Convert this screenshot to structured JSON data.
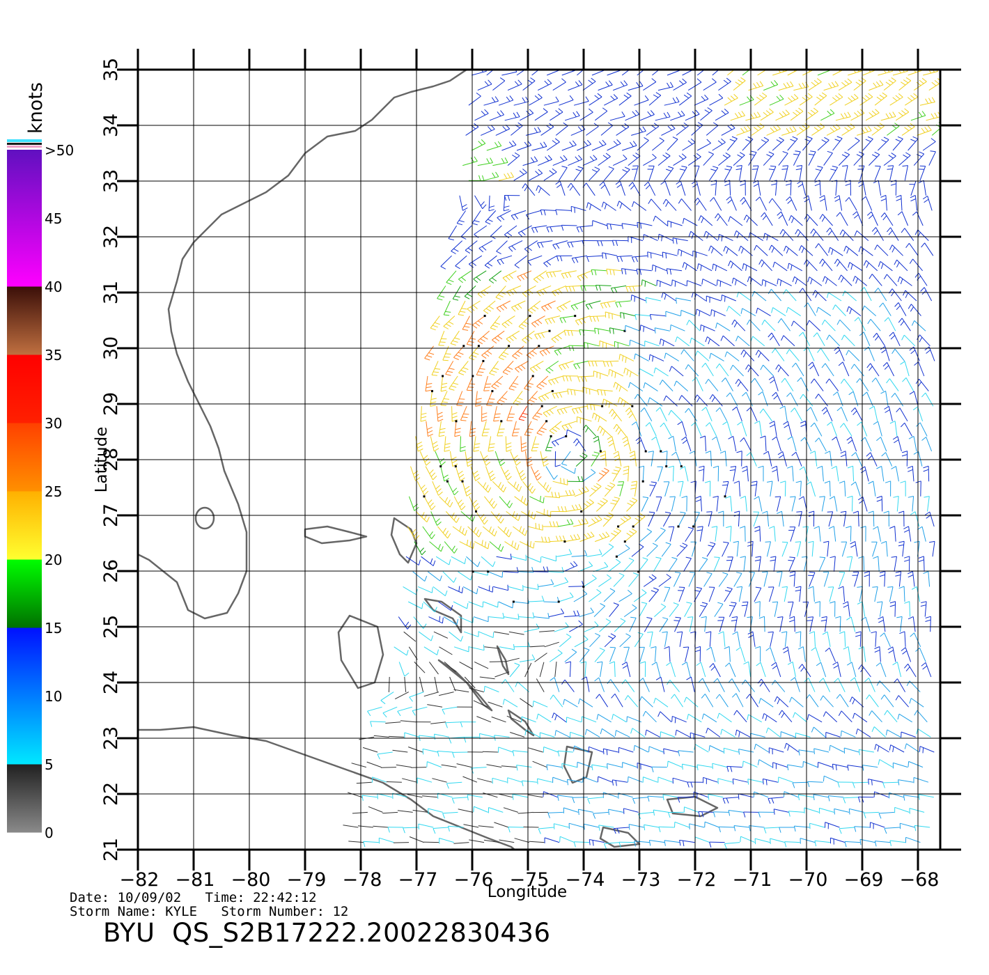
{
  "colorbar": {
    "unit_label": "knots",
    "bands": [
      {
        "from": 0,
        "to": 5,
        "colors": [
          "#8a8a8a",
          "#202020"
        ]
      },
      {
        "from": 5,
        "to": 15,
        "colors": [
          "#00e8ff",
          "#0010ff"
        ]
      },
      {
        "from": 15,
        "to": 20,
        "colors": [
          "#007000",
          "#00ff00"
        ]
      },
      {
        "from": 20,
        "to": 25,
        "colors": [
          "#ffff30",
          "#ffb000"
        ]
      },
      {
        "from": 25,
        "to": 30,
        "colors": [
          "#ff9000",
          "#ff4000"
        ]
      },
      {
        "from": 30,
        "to": 35,
        "colors": [
          "#ff2000",
          "#ff0000"
        ]
      },
      {
        "from": 35,
        "to": 40,
        "colors": [
          "#c07040",
          "#3a0e08"
        ]
      },
      {
        "from": 40,
        "to": 50,
        "colors": [
          "#ff00ff",
          "#6010c0"
        ]
      }
    ],
    "tick_labels": [
      "0",
      "5",
      "10",
      "15",
      "20",
      "25",
      "30",
      "35",
      "40",
      "45",
      ">50"
    ],
    "tick_values": [
      0,
      5,
      10,
      15,
      20,
      25,
      30,
      35,
      40,
      45,
      50
    ]
  },
  "map": {
    "lon_range": [
      -82,
      -67.6
    ],
    "lat_range": [
      21,
      35
    ],
    "x_axis_label": "Longitude",
    "y_axis_label": "Latitude",
    "x_ticks": [
      "−82",
      "−81",
      "−80",
      "−79",
      "−78",
      "−77",
      "−76",
      "−75",
      "−74",
      "−73",
      "−72",
      "−71",
      "−70",
      "−69",
      "−68"
    ],
    "x_tick_values": [
      -82,
      -81,
      -80,
      -79,
      -78,
      -77,
      -76,
      -75,
      -74,
      -73,
      -72,
      -71,
      -70,
      -69,
      -68
    ],
    "y_ticks": [
      "21",
      "22",
      "23",
      "24",
      "25",
      "26",
      "27",
      "28",
      "29",
      "30",
      "31",
      "32",
      "33",
      "34",
      "35"
    ],
    "y_tick_values": [
      21,
      22,
      23,
      24,
      25,
      26,
      27,
      28,
      29,
      30,
      31,
      32,
      33,
      34,
      35
    ],
    "coast_color": "#666666",
    "storm_center": {
      "lon": -74.2,
      "lat": 28.1
    },
    "swath_west_edge": [
      [
        -76.0,
        35
      ],
      [
        -76.3,
        32
      ],
      [
        -76.7,
        30
      ],
      [
        -77.1,
        28
      ],
      [
        -77.2,
        26
      ],
      [
        -77.5,
        24
      ],
      [
        -77.9,
        22.5
      ],
      [
        -78.1,
        21
      ]
    ]
  },
  "info": {
    "line1": "Date: 10/09/02   Time: 22:42:12",
    "line2": "Storm Name: KYLE   Storm Number: 12"
  },
  "product_label": "BYU  QS_S2B17222.20022830436"
}
